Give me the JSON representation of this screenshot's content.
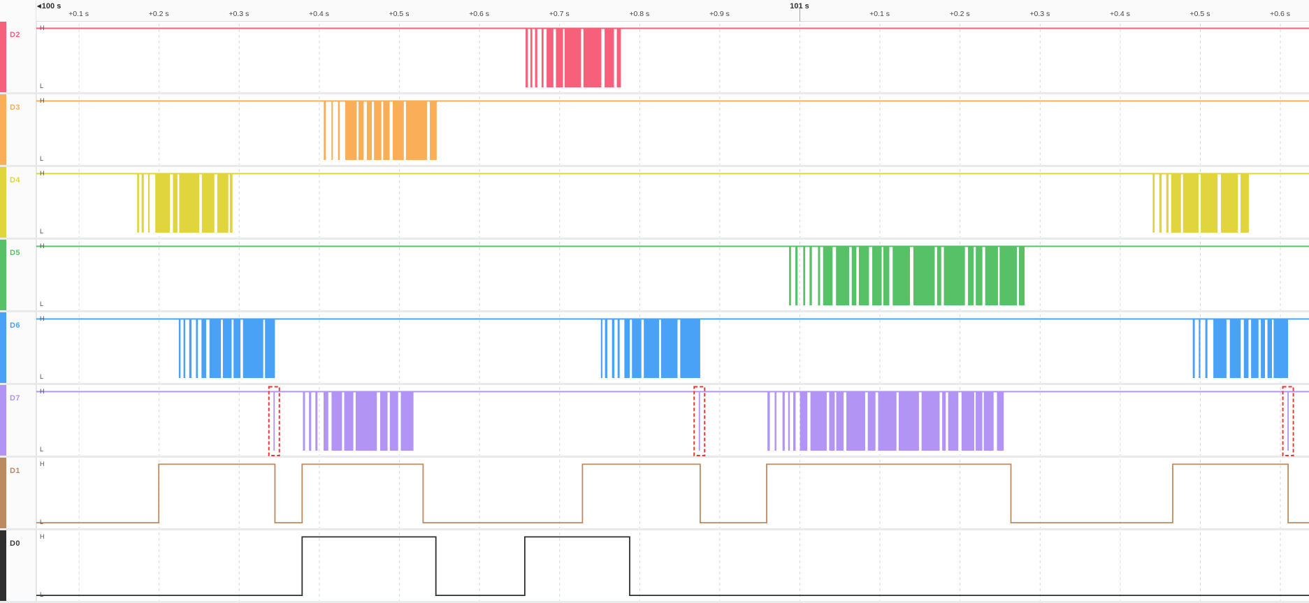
{
  "timeline": {
    "anchor_arrow": "◀",
    "anchor_label": "100 s",
    "major_label": "101 s",
    "major_s": 101.0,
    "minor_ticks": [
      {
        "label": "+0.1 s",
        "s": 100.1
      },
      {
        "label": "+0.2 s",
        "s": 100.2
      },
      {
        "label": "+0.3 s",
        "s": 100.3
      },
      {
        "label": "+0.4 s",
        "s": 100.4
      },
      {
        "label": "+0.5 s",
        "s": 100.5
      },
      {
        "label": "+0.6 s",
        "s": 100.6
      },
      {
        "label": "+0.7 s",
        "s": 100.7
      },
      {
        "label": "+0.8 s",
        "s": 100.8
      },
      {
        "label": "+0.9 s",
        "s": 100.9
      },
      {
        "label": "+0.1 s",
        "s": 101.1
      },
      {
        "label": "+0.2 s",
        "s": 101.2
      },
      {
        "label": "+0.3 s",
        "s": 101.3
      },
      {
        "label": "+0.4 s",
        "s": 101.4
      },
      {
        "label": "+0.5 s",
        "s": 101.5
      },
      {
        "label": "+0.6 s",
        "s": 101.6
      }
    ]
  },
  "levels": {
    "high_label": "H",
    "low_label": "L"
  },
  "marker_color": "#e53935",
  "chart_data": {
    "type": "digital-timing",
    "x_unit": "s",
    "x_range": [
      100.0,
      101.636
    ],
    "minor_tick_interval_s": 0.1,
    "major_ticks_s": [
      100.0,
      101.0
    ],
    "channels": [
      {
        "name": "D2",
        "color": "#f7607b",
        "kind": "burst",
        "baseline": "high",
        "bursts": [
          [
            100.658,
            100.777
          ]
        ]
      },
      {
        "name": "D3",
        "color": "#fbae58",
        "kind": "burst",
        "baseline": "high",
        "bursts": [
          [
            100.406,
            100.547
          ]
        ]
      },
      {
        "name": "D4",
        "color": "#e1d53d",
        "kind": "burst",
        "baseline": "high",
        "bursts": [
          [
            100.173,
            100.292
          ],
          [
            101.441,
            101.561
          ]
        ]
      },
      {
        "name": "D5",
        "color": "#57c167",
        "kind": "burst",
        "baseline": "high",
        "bursts": [
          [
            100.987,
            101.281
          ]
        ]
      },
      {
        "name": "D6",
        "color": "#4aa2f7",
        "kind": "burst",
        "baseline": "high",
        "bursts": [
          [
            100.225,
            100.345
          ],
          [
            100.752,
            100.876
          ],
          [
            101.491,
            101.61
          ]
        ]
      },
      {
        "name": "D7",
        "color": "#b194f4",
        "kind": "burst",
        "baseline": "high",
        "bursts": [
          [
            100.38,
            100.518
          ],
          [
            100.96,
            101.255
          ]
        ],
        "glitch_pulses": [
          100.344,
          100.875,
          101.61
        ],
        "glitch_marked": true
      },
      {
        "name": "D1",
        "color": "#bc8a60",
        "kind": "square",
        "initial": "low",
        "edges": [
          100.2,
          100.345,
          100.379,
          100.53,
          100.729,
          100.876,
          100.959,
          101.264,
          101.466,
          101.61
        ]
      },
      {
        "name": "D0",
        "color": "#2f2f2f",
        "kind": "square",
        "initial": "low",
        "edges": [
          100.379,
          100.546,
          100.657,
          100.788
        ],
        "label_color": "#3a3a3a"
      }
    ]
  }
}
